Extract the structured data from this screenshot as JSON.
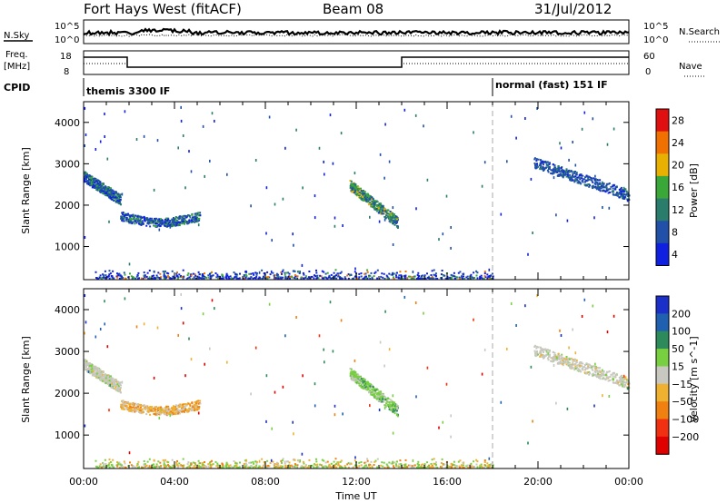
{
  "header": {
    "station": "Fort Hays West (fitACF)",
    "beam": "Beam 08",
    "date": "31/Jul/2012"
  },
  "top_panels": {
    "nsky_label": "N.Sky",
    "nsearch_label": "N.Search",
    "freq_label_1": "Freq.",
    "freq_label_2": "[MHz]",
    "nave_label": "Nave",
    "cpid_label": "CPID",
    "noise_left_ticks": [
      "10^5",
      "10^0"
    ],
    "noise_right_ticks": [
      "10^5",
      "10^0"
    ],
    "freq_ticks": [
      "18",
      "8"
    ],
    "nave_ticks": [
      "60",
      "0"
    ],
    "cpid_segments": [
      {
        "label": "themis 3300 IF",
        "start": 0,
        "end": 18
      },
      {
        "label": "normal (fast) 151 IF",
        "start": 18,
        "end": 24
      }
    ]
  },
  "chart_data": [
    {
      "type": "heatmap",
      "name": "power",
      "xlabel": "",
      "ylabel": "Slant Range [km]",
      "xlim": [
        0,
        24
      ],
      "ylim": [
        200,
        4500
      ],
      "yticks": [
        "1000",
        "2000",
        "3000",
        "4000"
      ],
      "colorbar": {
        "label": "Power [dB]",
        "ticks": [
          "4",
          "8",
          "12",
          "16",
          "20",
          "24",
          "28"
        ],
        "colors": [
          "#1020e0",
          "#2050a8",
          "#2a7d6a",
          "#3aa838",
          "#e8b000",
          "#f07000",
          "#e01010"
        ]
      },
      "features": [
        {
          "t_start": 0.0,
          "t_end": 1.6,
          "r_start": 2700,
          "r_end": 2150,
          "level": "mixed"
        },
        {
          "t_start": 1.6,
          "t_end": 5.1,
          "r_start": 1700,
          "r_end": 1700,
          "level": "mixed"
        },
        {
          "t_start": 11.7,
          "t_end": 13.8,
          "r_start": 2500,
          "r_end": 1600,
          "level": "strong"
        },
        {
          "t_start": 19.8,
          "t_end": 24.0,
          "r_start": 3050,
          "r_end": 2250,
          "level": "weak"
        },
        {
          "t_start": 0.5,
          "t_end": 18.0,
          "r_start": 300,
          "r_end": 300,
          "level": "ground"
        }
      ]
    },
    {
      "type": "heatmap",
      "name": "velocity",
      "xlabel": "Time UT",
      "ylabel": "Slant Range [km]",
      "xlim": [
        0,
        24
      ],
      "ylim": [
        200,
        4500
      ],
      "xticks": [
        "00:00",
        "04:00",
        "08:00",
        "12:00",
        "16:00",
        "20:00",
        "00:00"
      ],
      "yticks": [
        "1000",
        "2000",
        "3000",
        "4000"
      ],
      "colorbar": {
        "label": "Velocity [m s^-1]",
        "ticks": [
          "200",
          "100",
          "50",
          "15",
          "−15",
          "−50",
          "−100",
          "−200"
        ],
        "colors": [
          "#1a30c8",
          "#2060b0",
          "#2d8a5a",
          "#78d040",
          "#c8c8c0",
          "#f0b030",
          "#f08010",
          "#f03010",
          "#e00000"
        ]
      },
      "features": [
        {
          "t_start": 0.0,
          "t_end": 1.6,
          "r_start": 2700,
          "r_end": 2150,
          "level": "gray"
        },
        {
          "t_start": 1.6,
          "t_end": 5.1,
          "r_start": 1700,
          "r_end": 1700,
          "level": "orange"
        },
        {
          "t_start": 11.7,
          "t_end": 13.8,
          "r_start": 2500,
          "r_end": 1600,
          "level": "green"
        },
        {
          "t_start": 19.8,
          "t_end": 24.0,
          "r_start": 3050,
          "r_end": 2250,
          "level": "gray"
        },
        {
          "t_start": 0.5,
          "t_end": 18.0,
          "r_start": 300,
          "r_end": 300,
          "level": "ground"
        }
      ]
    }
  ]
}
